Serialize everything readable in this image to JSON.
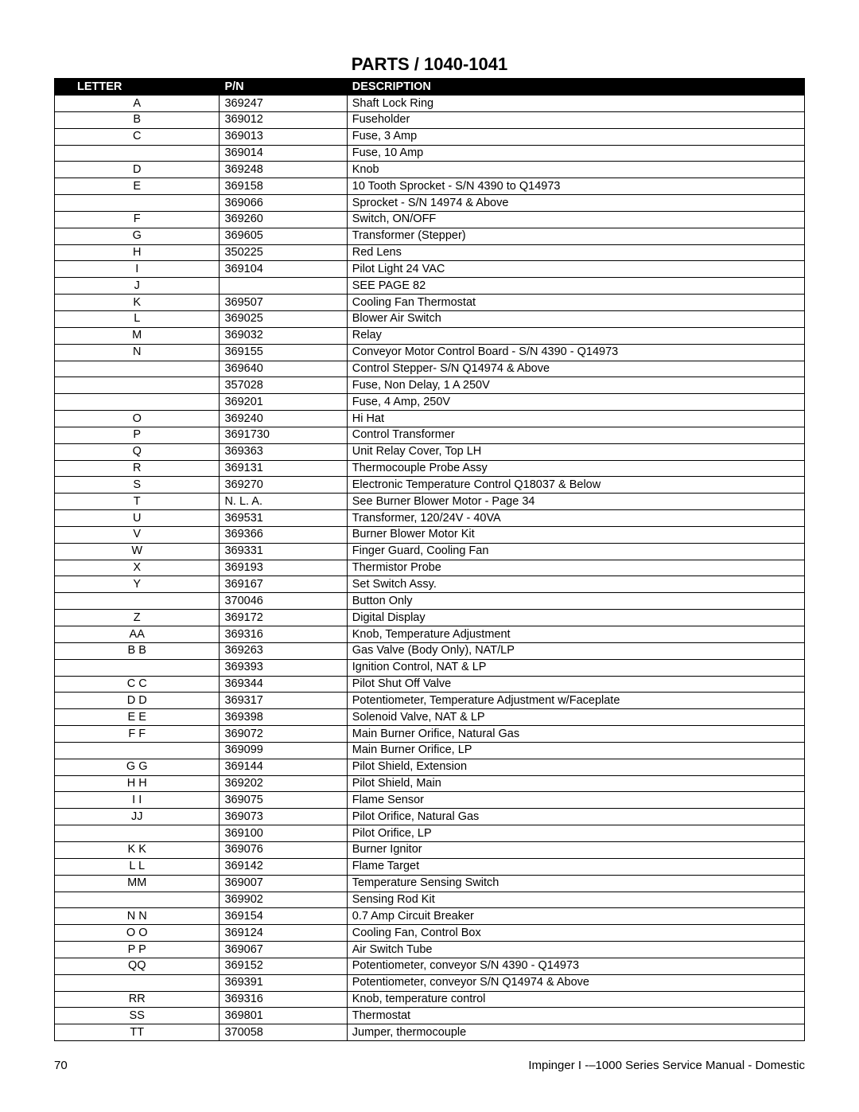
{
  "title": "PARTS / 1040-1041",
  "columns": [
    "LETTER",
    "P/N",
    "DESCRIPTION"
  ],
  "rows": [
    [
      "A",
      "369247",
      "Shaft Lock Ring"
    ],
    [
      "B",
      "369012",
      "Fuseholder"
    ],
    [
      "C",
      "369013",
      "Fuse, 3 Amp"
    ],
    [
      "",
      "369014",
      "Fuse, 10 Amp"
    ],
    [
      "D",
      "369248",
      "Knob"
    ],
    [
      "E",
      "369158",
      "10 Tooth Sprocket - S/N 4390 to Q14973"
    ],
    [
      "",
      "369066",
      "Sprocket - S/N 14974 & Above"
    ],
    [
      "F",
      "369260",
      "Switch, ON/OFF"
    ],
    [
      "G",
      "369605",
      "Transformer (Stepper)"
    ],
    [
      "H",
      "350225",
      "Red Lens"
    ],
    [
      "I",
      "369104",
      "Pilot Light 24 VAC"
    ],
    [
      "J",
      "",
      "SEE PAGE 82"
    ],
    [
      "K",
      "369507",
      "Cooling Fan Thermostat"
    ],
    [
      "L",
      "369025",
      "Blower Air Switch"
    ],
    [
      "M",
      "369032",
      "Relay"
    ],
    [
      "N",
      "369155",
      "Conveyor Motor Control Board - S/N 4390 - Q14973"
    ],
    [
      "",
      "369640",
      "Control Stepper- S/N Q14974 & Above"
    ],
    [
      "",
      "357028",
      "Fuse, Non Delay, 1 A 250V"
    ],
    [
      "",
      "369201",
      "Fuse, 4 Amp, 250V"
    ],
    [
      "O",
      "369240",
      "Hi Hat"
    ],
    [
      "P",
      "3691730",
      "Control Transformer"
    ],
    [
      "Q",
      "369363",
      "Unit Relay Cover, Top LH"
    ],
    [
      "R",
      "369131",
      "Thermocouple Probe Assy"
    ],
    [
      "S",
      "369270",
      "Electronic Temperature Control Q18037 & Below"
    ],
    [
      "T",
      "N. L. A.",
      "See Burner Blower Motor - Page 34"
    ],
    [
      "U",
      "369531",
      "Transformer, 120/24V - 40VA"
    ],
    [
      "V",
      "369366",
      "Burner Blower Motor Kit"
    ],
    [
      "W",
      "369331",
      "Finger Guard, Cooling Fan"
    ],
    [
      "X",
      "369193",
      "Thermistor Probe"
    ],
    [
      "Y",
      "369167",
      "Set Switch Assy."
    ],
    [
      "",
      "370046",
      "Button Only"
    ],
    [
      "Z",
      "369172",
      "Digital Display"
    ],
    [
      "AA",
      "369316",
      "Knob, Temperature Adjustment"
    ],
    [
      "B B",
      "369263",
      "Gas Valve (Body Only), NAT/LP"
    ],
    [
      "",
      "369393",
      "Ignition Control, NAT & LP"
    ],
    [
      "C C",
      "369344",
      "Pilot Shut Off Valve"
    ],
    [
      "D D",
      "369317",
      "Potentiometer, Temperature Adjustment w/Faceplate"
    ],
    [
      "E E",
      "369398",
      "Solenoid Valve, NAT & LP"
    ],
    [
      "F F",
      "369072",
      "Main Burner Orifice, Natural Gas"
    ],
    [
      "",
      "369099",
      "Main Burner Orifice, LP"
    ],
    [
      "G G",
      "369144",
      "Pilot Shield, Extension"
    ],
    [
      "H H",
      "369202",
      "Pilot Shield, Main"
    ],
    [
      "I I",
      "369075",
      "Flame Sensor"
    ],
    [
      "JJ",
      "369073",
      "Pilot Orifice, Natural Gas"
    ],
    [
      "",
      "369100",
      "Pilot Orifice, LP"
    ],
    [
      "K K",
      "369076",
      "Burner Ignitor"
    ],
    [
      "L L",
      "369142",
      "Flame Target"
    ],
    [
      "MM",
      "369007",
      "Temperature Sensing Switch"
    ],
    [
      "",
      "369902",
      "Sensing Rod Kit"
    ],
    [
      "N N",
      "369154",
      "0.7 Amp Circuit Breaker"
    ],
    [
      "O O",
      "369124",
      "Cooling Fan, Control Box"
    ],
    [
      "P P",
      "369067",
      "Air Switch Tube"
    ],
    [
      "QQ",
      "369152",
      "Potentiometer, conveyor  S/N 4390 - Q14973"
    ],
    [
      "",
      "369391",
      "Potentiometer, conveyor  S/N Q14974 & Above"
    ],
    [
      "RR",
      "369316",
      "Knob, temperature control"
    ],
    [
      "SS",
      "369801",
      "Thermostat"
    ],
    [
      "TT",
      "370058",
      "Jumper, thermocouple"
    ]
  ],
  "footer": {
    "page_number": "70",
    "manual_title": "Impinger I -–1000 Series Service Manual - Domestic"
  },
  "styling": {
    "background_color": "#ffffff",
    "header_bg": "#000000",
    "header_text_color": "#ffffff",
    "border_color": "#000000",
    "body_font_size": 14.5,
    "title_font_size": 22,
    "footer_font_size": 15,
    "col_widths_pct": [
      22,
      17,
      61
    ]
  }
}
